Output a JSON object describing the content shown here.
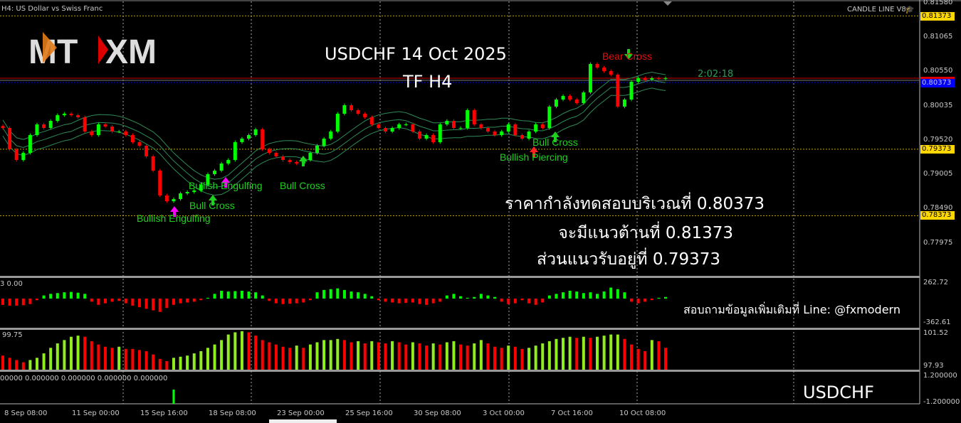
{
  "header": {
    "symbol_title": "H4:  US Dollar vs Swiss Franc",
    "indicator_name": "CANDLE LINE V8"
  },
  "logo": {
    "text_left": "MT",
    "text_right": "XM"
  },
  "overlay": {
    "title_line1": "USDCHF  14  Oct 2025",
    "title_line2": "TF H4",
    "thai_line1": "ราคากำลังทดสอบบริเวณที่ 0.80373",
    "thai_line2": "จะมีแนวต้านที่ 0.81373",
    "thai_line3": "ส่วนแนวรับอยู่ที่ 0.79373",
    "contact": "สอบถามข้อมูลเพิ่มเติมที่ Line: @fxmodern",
    "symbol_footer": "USDCHF",
    "countdown": "2:02:18"
  },
  "annotations": {
    "bullish_engulfing_1": "Bullish Engulfing",
    "bull_cross_1": "Bull Cross",
    "bullish_engulfing_2": "Bullish Engulfing",
    "bull_cross_2": "Bull Cross",
    "bullish_piercing": "Bullish Piercing",
    "bull_cross_3": "Bull Cross",
    "bear_cross": "Bear Cross"
  },
  "price_axis": {
    "ticks": [
      "0.81580",
      "0.81065",
      "0.80550",
      "0.80035",
      "0.79520",
      "0.79005",
      "0.78490",
      "0.77975"
    ],
    "levels": {
      "resistance": "0.81373",
      "current": "0.80373",
      "support": "0.79373",
      "support2": "0.78373"
    }
  },
  "panels": {
    "osc1": {
      "label": "3 0.00",
      "max": "262.72",
      "min": "-362.61"
    },
    "osc2": {
      "label": "99.75",
      "max": "101.52",
      "min": "97.93"
    },
    "osc3": {
      "label": "00000 0.000000 0.000000 0.000000 0.000000",
      "max": "1.200000",
      "min": "-1.200000"
    }
  },
  "time_axis": [
    "8 Sep 08:00",
    "11 Sep 00:00",
    "15 Sep 16:00",
    "18 Sep 08:00",
    "23 Sep 00:00",
    "25 Sep 16:00",
    "30 Sep 08:00",
    "3 Oct 00:00",
    "7 Oct 16:00",
    "10 Oct 08:00"
  ],
  "colors": {
    "bull": "#00ff00",
    "bear": "#ff0000",
    "bands": "#2e8b57",
    "level": "#c8a000",
    "bid_line": "#cc0000",
    "current_line": "#0000ff",
    "osc2_up": "#90ee20"
  },
  "chart_data": {
    "type": "candlestick",
    "symbol": "USDCHF",
    "timeframe": "H4",
    "ylim": [
      0.77975,
      0.8158
    ],
    "grid": true,
    "close": [
      0.79691,
      0.79371,
      0.79211,
      0.79318,
      0.79585,
      0.79745,
      0.79691,
      0.79798,
      0.79884,
      0.79905,
      0.79884,
      0.79852,
      0.79638,
      0.79585,
      0.79745,
      0.79713,
      0.79638,
      0.79638,
      0.79585,
      0.79478,
      0.79425,
      0.79265,
      0.79051,
      0.78678,
      0.78592,
      0.78624,
      0.7871,
      0.78731,
      0.78752,
      0.78838,
      0.78998,
      0.79051,
      0.79158,
      0.79211,
      0.79478,
      0.79531,
      0.79585,
      0.7967,
      0.79371,
      0.79318,
      0.79265,
      0.79211,
      0.79179,
      0.79158,
      0.79211,
      0.79318,
      0.79425,
      0.79531,
      0.79638,
      0.79905,
      0.80033,
      0.79958,
      0.79905,
      0.79852,
      0.79745,
      0.79691,
      0.79638,
      0.79691,
      0.79745,
      0.79745,
      0.79638,
      0.79531,
      0.79585,
      0.79478,
      0.79745,
      0.79798,
      0.79691,
      0.79691,
      0.79958,
      0.79745,
      0.79691,
      0.79638,
      0.79585,
      0.79638,
      0.79745,
      0.79585,
      0.79531,
      0.79638,
      0.79745,
      0.79691,
      0.80012,
      0.80118,
      0.80172,
      0.80118,
      0.80065,
      0.80225,
      0.80652,
      0.80598,
      0.80545,
      0.80492,
      0.80012,
      0.80118,
      0.80385,
      0.80438,
      0.80417,
      0.80438,
      0.8043,
      0.80438
    ],
    "osc1_values": [
      -80,
      -90,
      -90,
      -85,
      -70,
      -20,
      40,
      60,
      70,
      80,
      85,
      75,
      60,
      -40,
      -80,
      -60,
      -40,
      -30,
      -60,
      -90,
      -110,
      -130,
      -150,
      -170,
      -120,
      -80,
      -60,
      -50,
      -40,
      -20,
      10,
      60,
      100,
      90,
      95,
      100,
      90,
      80,
      40,
      -30,
      -60,
      -70,
      -65,
      -60,
      -50,
      -20,
      80,
      110,
      120,
      130,
      110,
      90,
      80,
      60,
      30,
      -20,
      -40,
      -50,
      -60,
      -55,
      -50,
      -70,
      -80,
      -60,
      -40,
      40,
      60,
      30,
      10,
      20,
      60,
      40,
      20,
      -40,
      -70,
      -60,
      -20,
      -60,
      -80,
      -50,
      40,
      60,
      80,
      100,
      90,
      70,
      80,
      60,
      90,
      140,
      120,
      80,
      -40,
      -60,
      -40,
      -20,
      10,
      20
    ],
    "osc2_values": [
      99.2,
      99.0,
      98.8,
      98.6,
      98.8,
      99.0,
      99.4,
      99.9,
      100.3,
      100.6,
      100.9,
      101.0,
      100.9,
      100.5,
      100.2,
      100.0,
      99.9,
      100.0,
      99.8,
      99.8,
      99.7,
      99.6,
      99.3,
      98.9,
      98.7,
      99.0,
      99.1,
      99.2,
      99.4,
      99.6,
      99.9,
      100.2,
      100.6,
      101.1,
      101.3,
      101.4,
      101.3,
      101.0,
      100.6,
      100.4,
      100.2,
      100.0,
      99.9,
      100.1,
      99.9,
      100.2,
      100.4,
      100.6,
      100.6,
      100.7,
      100.6,
      100.4,
      100.5,
      100.3,
      100.5,
      100.4,
      100.3,
      100.5,
      100.4,
      100.2,
      100.4,
      100.3,
      100.1,
      100.3,
      100.2,
      100.4,
      100.5,
      100.2,
      100.1,
      100.3,
      100.6,
      100.3,
      100.0,
      99.9,
      100.1,
      100.0,
      99.8,
      99.9,
      100.1,
      100.3,
      100.5,
      100.7,
      100.8,
      100.9,
      100.8,
      100.9,
      100.8,
      100.9,
      101.0,
      101.1,
      101.1,
      100.7,
      100.2,
      99.8,
      99.6,
      100.6,
      100.5,
      99.9
    ],
    "osc3_signal_index": 25,
    "osc3_range": [
      -1.2,
      1.2
    ]
  }
}
